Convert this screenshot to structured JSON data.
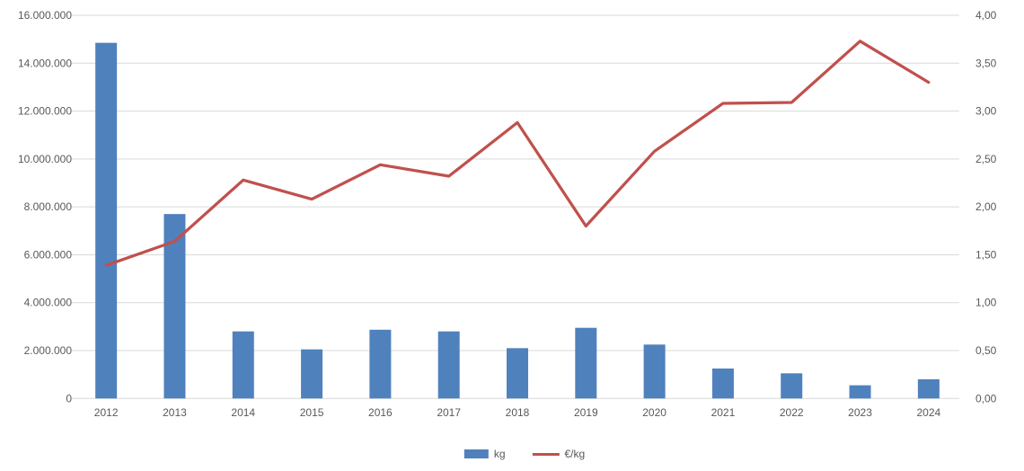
{
  "chart_data": {
    "type": "combo-bar-line",
    "title": "",
    "categories": [
      "2012",
      "2013",
      "2014",
      "2015",
      "2016",
      "2017",
      "2018",
      "2019",
      "2020",
      "2021",
      "2022",
      "2023",
      "2024"
    ],
    "series": [
      {
        "name": "kg",
        "type": "bar",
        "axis": "left",
        "color": "#4F81BD",
        "values": [
          14850000,
          7700000,
          2800000,
          2050000,
          2870000,
          2800000,
          2100000,
          2950000,
          2250000,
          1250000,
          1050000,
          550000,
          800000
        ]
      },
      {
        "name": "€/kg",
        "type": "line",
        "axis": "right",
        "color": "#C0504D",
        "values": [
          1.39,
          1.64,
          2.28,
          2.08,
          2.44,
          2.32,
          2.88,
          1.8,
          2.58,
          3.08,
          3.09,
          3.73,
          3.3
        ]
      }
    ],
    "left_axis": {
      "min": 0,
      "max": 16000000,
      "tick_interval": 2000000,
      "tick_labels": [
        "0",
        "2.000.000",
        "4.000.000",
        "6.000.000",
        "8.000.000",
        "10.000.000",
        "12.000.000",
        "14.000.000",
        "16.000.000"
      ]
    },
    "right_axis": {
      "min": 0,
      "max": 4,
      "tick_interval": 0.5,
      "tick_labels": [
        "0,00",
        "0,50",
        "1,00",
        "1,50",
        "2,00",
        "2,50",
        "3,00",
        "3,50",
        "4,00"
      ]
    },
    "grid": true,
    "legend": {
      "position": "bottom",
      "entries": [
        "kg",
        "€/kg"
      ]
    }
  },
  "colors": {
    "bar": "#4F81BD",
    "line": "#C0504D",
    "gridline": "#D9D9D9",
    "axis_text": "#595959",
    "background": "#FFFFFF"
  }
}
